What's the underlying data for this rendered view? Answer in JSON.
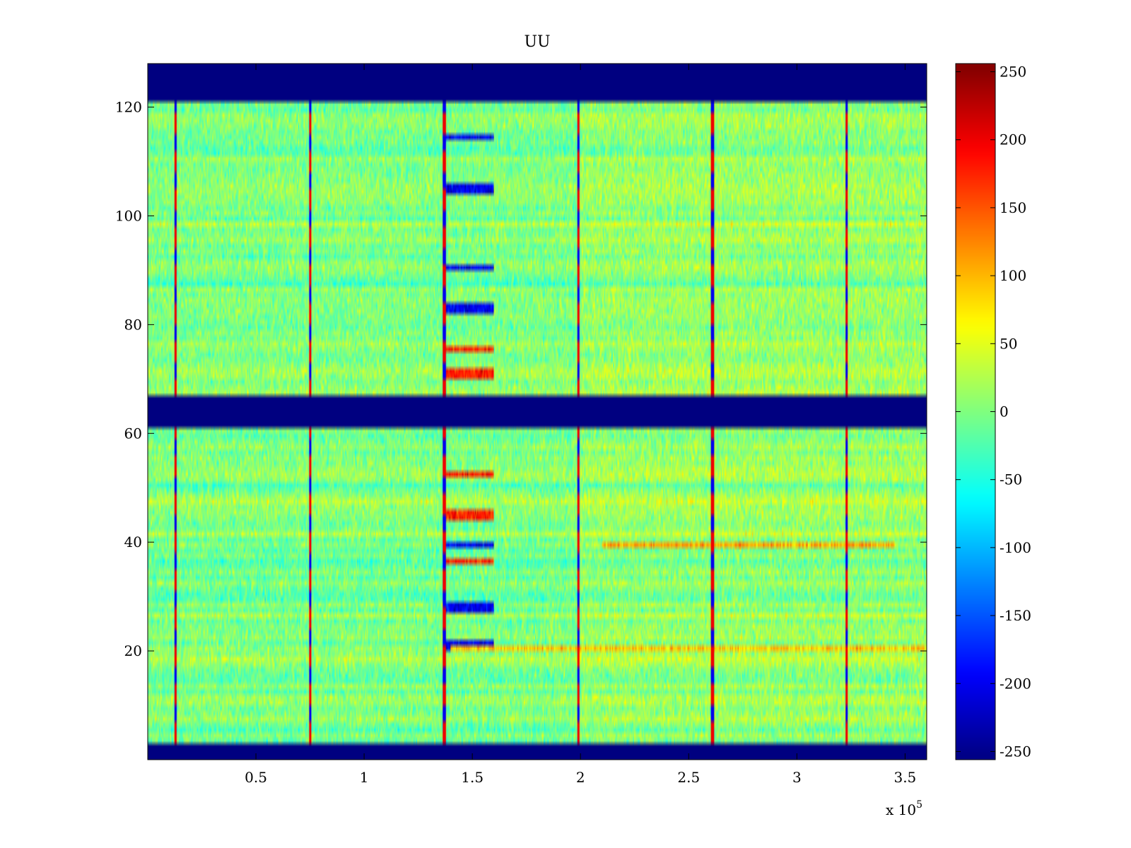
{
  "chart_data": {
    "type": "heatmap",
    "title": "UU",
    "xlabel": "",
    "ylabel": "",
    "x_multiplier_label": "x 10",
    "x_multiplier_exponent": "5",
    "xlim": [
      0,
      3.6
    ],
    "ylim": [
      0,
      128
    ],
    "x_ticks": [
      0.5,
      1,
      1.5,
      2,
      2.5,
      3,
      3.5
    ],
    "x_tick_labels": [
      "0.5",
      "1",
      "1.5",
      "2",
      "2.5",
      "3",
      "3.5"
    ],
    "y_ticks": [
      20,
      40,
      60,
      80,
      100,
      120
    ],
    "y_tick_labels": [
      "20",
      "40",
      "60",
      "80",
      "100",
      "120"
    ],
    "colormap": "jet",
    "clim": [
      -256,
      256
    ],
    "colorbar_ticks": [
      250,
      200,
      150,
      100,
      50,
      0,
      -50,
      -100,
      -150,
      -200,
      -250
    ],
    "colorbar_tick_labels": [
      "250",
      "200",
      "150",
      "100",
      "50",
      "0",
      "-50",
      "-100",
      "-150",
      "-200",
      "-250"
    ],
    "masked_row_bands": [
      [
        0,
        3
      ],
      [
        61,
        67
      ],
      [
        121,
        128
      ]
    ],
    "masked_value": -256,
    "vertical_event_lines_x": [
      0.13,
      0.75,
      1.37,
      1.99,
      2.61,
      3.23
    ],
    "baseline_value": 0,
    "notable_features": [
      {
        "x_range": [
          1.37,
          1.6
        ],
        "rows": [
          20,
          21,
          27,
          28,
          39,
          82,
          83,
          90,
          104,
          105,
          114
        ],
        "value": -200
      },
      {
        "x_range": [
          1.37,
          1.6
        ],
        "rows": [
          36,
          44,
          45,
          52,
          70,
          71,
          75
        ],
        "value": 180
      },
      {
        "x_range": [
          2.1,
          3.45
        ],
        "rows": [
          39
        ],
        "value": 110
      },
      {
        "x_range": [
          1.4,
          3.6
        ],
        "rows": [
          20
        ],
        "value": 90
      }
    ]
  }
}
